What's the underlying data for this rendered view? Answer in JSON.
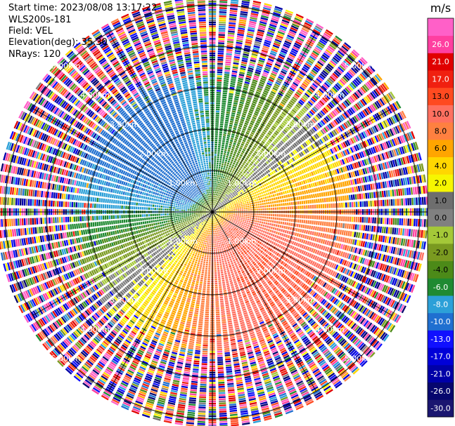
{
  "header": {
    "start_time": "Start time: 2023/08/08 13:17:22",
    "instrument": "WLS200s-181",
    "field": "Field: VEL",
    "elevation": "Elevation(deg): 35.30",
    "nrays": "NRays: 120"
  },
  "chart_data": {
    "type": "heatmap",
    "projection": "polar-ppi",
    "field": "VEL",
    "units": "m/s",
    "n_rays": 120,
    "max_range_km": 5.2,
    "range_rings_km": [
      1.0,
      2.0,
      3.0,
      4.0,
      5.0
    ],
    "range_ring_labels": [
      "1.00km",
      "2.00km",
      "3.00km",
      "4.00km",
      "5.00km"
    ],
    "noise_free_range_km": 3.4,
    "colorbar": {
      "unit_label": "m/s",
      "levels": [
        -30.0,
        -26.0,
        -21.0,
        -17.0,
        -13.0,
        -10.0,
        -8.0,
        -6.0,
        -4.0,
        -2.0,
        -1.0,
        0.0,
        1.0,
        2.0,
        4.0,
        6.0,
        8.0,
        10.0,
        13.0,
        17.0,
        21.0,
        26.0
      ],
      "tick_labels": [
        "-30.0",
        "-26.0",
        "-21.0",
        "-17.0",
        "-13.0",
        "-10.0",
        "-8.0",
        "-6.0",
        "-4.0",
        "-2.0",
        "-1.0",
        "0.0",
        "1.0",
        "2.0",
        "4.0",
        "6.0",
        "8.0",
        "10.0",
        "13.0",
        "17.0",
        "21.0",
        "26.0"
      ],
      "colors": [
        "#1a1670",
        "#06066e",
        "#0000a8",
        "#0000d8",
        "#1010ff",
        "#1f6fd0",
        "#2ca0d8",
        "#1f8a32",
        "#4c8a18",
        "#7a9a20",
        "#a4c838",
        "#808080",
        "#6e6e6e",
        "#f6f600",
        "#ffd700",
        "#ffa500",
        "#ff8040",
        "#ff7060",
        "#ff4a20",
        "#f02010",
        "#e00000",
        "#ff3fa0",
        "#ff60c8"
      ]
    },
    "velocity_pattern": {
      "approaching_max_azimuth_deg": 320,
      "receding_max_azimuth_deg": 140,
      "peak_speed_ms": 10.0
    }
  }
}
